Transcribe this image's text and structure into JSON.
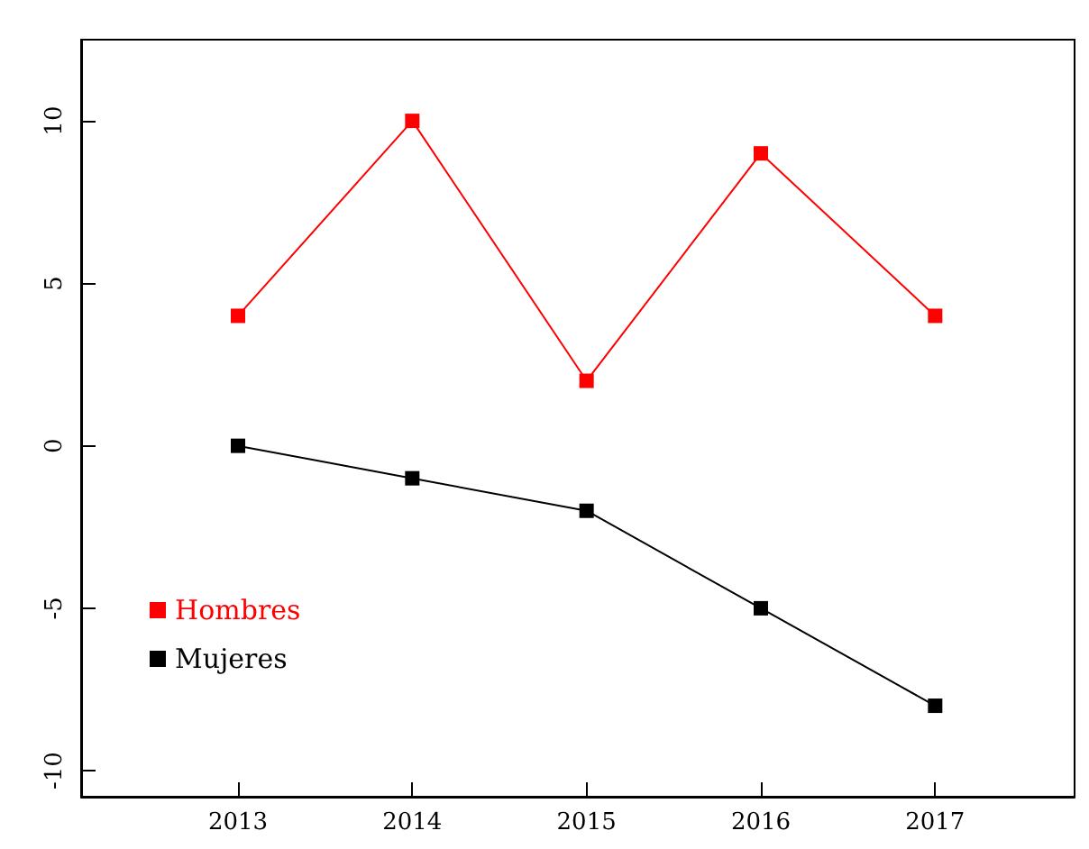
{
  "chart_data": {
    "type": "line",
    "x": [
      2013,
      2014,
      2015,
      2016,
      2017
    ],
    "series": [
      {
        "name": "Hombres",
        "color": "#ff0000",
        "values": [
          4,
          10,
          2,
          9,
          4
        ]
      },
      {
        "name": "Mujeres",
        "color": "#000000",
        "values": [
          0,
          -1,
          -2,
          -5,
          -8
        ]
      }
    ],
    "xlim": [
      2012.1,
      2017.8
    ],
    "xticks": [
      2013,
      2014,
      2015,
      2016,
      2017
    ],
    "ylim": [
      -10.8,
      12.5
    ],
    "yticks": [
      -10,
      -5,
      0,
      5,
      10
    ],
    "marker": "square",
    "line_style": "solid",
    "grid": false,
    "legend": "bottom left"
  }
}
